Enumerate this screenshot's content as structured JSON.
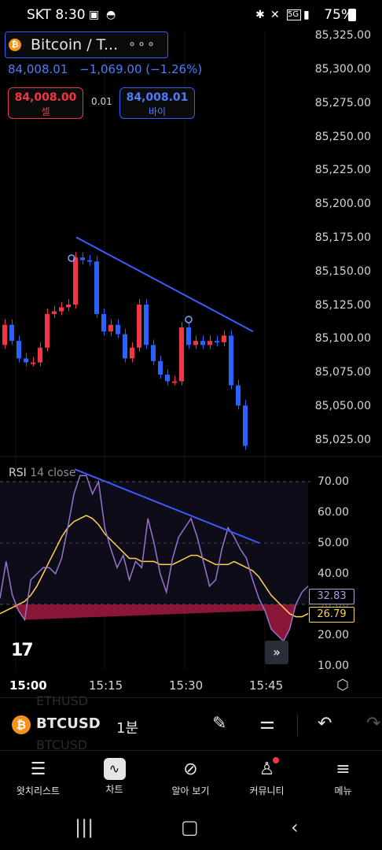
{
  "status_bar": {
    "carrier_time": "SKT 8:30",
    "battery": "75%",
    "icons": [
      "image-icon",
      "incognito-icon",
      "bluetooth-icon",
      "mute-icon",
      "5g-icon",
      "signal-icon",
      "battery-icon"
    ]
  },
  "symbol": {
    "title": "Bitcoin / T...",
    "more_label": "∘∘∘",
    "last_price": "84,008.01",
    "change": "−1,069.00 (−1.26%)"
  },
  "trade": {
    "sell_price": "84,008.00",
    "sell_label": "셀",
    "spread": "0.01",
    "buy_price": "84,008.01",
    "buy_label": "바이"
  },
  "price_axis": [
    "85,325.00",
    "85,300.00",
    "85,275.00",
    "85,250.00",
    "85,225.00",
    "85,200.00",
    "85,175.00",
    "85,150.00",
    "85,125.00",
    "85,100.00",
    "85,075.00",
    "85,050.00",
    "85,025.00"
  ],
  "rsi": {
    "label": "RSI",
    "params": "14 close",
    "axis": [
      "70.00",
      "60.00",
      "50.00",
      "40.00",
      "30.00",
      "20.00",
      "10.00"
    ],
    "value_badge": "32.83",
    "ma_badge": "26.79"
  },
  "time_axis": [
    "15:00",
    "15:15",
    "15:30",
    "15:45"
  ],
  "colors": {
    "up": "#f23645",
    "down": "#2962ff",
    "trendline": "#3d5afe",
    "rsi_line": "#9575cd",
    "rsi_ma": "#ffd24d"
  },
  "chart_data": [
    {
      "type": "candlestick",
      "ylabel": "",
      "ylim": [
        85012,
        85337
      ],
      "candles_open_close": [
        [
          85095,
          85110
        ],
        [
          85110,
          85098
        ],
        [
          85098,
          85085
        ],
        [
          85085,
          85082
        ],
        [
          85082,
          85082
        ],
        [
          85082,
          85093
        ],
        [
          85093,
          85118
        ],
        [
          85118,
          85120
        ],
        [
          85120,
          85123
        ],
        [
          85123,
          85125
        ],
        [
          85125,
          85160
        ],
        [
          85160,
          85158
        ],
        [
          85158,
          85157
        ],
        [
          85157,
          85118
        ],
        [
          85118,
          85105
        ],
        [
          85105,
          85110
        ],
        [
          85110,
          85103
        ],
        [
          85103,
          85085
        ],
        [
          85085,
          85093
        ],
        [
          85093,
          85125
        ],
        [
          85125,
          85095
        ],
        [
          85095,
          85083
        ],
        [
          85083,
          85073
        ],
        [
          85073,
          85068
        ],
        [
          85068,
          85068
        ],
        [
          85068,
          85108
        ],
        [
          85108,
          85095
        ],
        [
          85095,
          85098
        ],
        [
          85098,
          85095
        ],
        [
          85095,
          85098
        ],
        [
          85098,
          85097
        ],
        [
          85097,
          85102
        ],
        [
          85102,
          85065
        ],
        [
          85065,
          85050
        ],
        [
          85050,
          85020
        ]
      ],
      "trendline": {
        "start": [
          85,
          85175
        ],
        "end": [
          322,
          85105
        ]
      }
    },
    {
      "type": "line",
      "title": "RSI 14 close",
      "ylim": [
        10,
        70
      ],
      "series": [
        {
          "values": [
            32,
            44,
            33,
            28,
            25,
            38,
            40,
            42,
            42,
            40,
            45,
            55,
            66,
            72,
            72,
            66,
            70,
            55,
            48,
            42,
            46,
            38,
            44,
            42,
            58,
            50,
            40,
            34,
            45,
            52,
            55,
            58,
            52,
            44,
            36,
            38,
            48,
            55,
            52,
            48,
            45,
            38,
            32,
            28,
            22,
            20,
            18,
            22,
            30,
            34,
            36
          ]
        },
        {
          "values": [
            27,
            28,
            29,
            30,
            31,
            33,
            36,
            40,
            44,
            48,
            52,
            55,
            57,
            58,
            59,
            58,
            56,
            53,
            51,
            49,
            47,
            45,
            45,
            44,
            44,
            44,
            43,
            43,
            43,
            44,
            45,
            46,
            46,
            45,
            44,
            43,
            43,
            43,
            44,
            43,
            42,
            41,
            39,
            36,
            33,
            31,
            29,
            27,
            26,
            26,
            27
          ]
        }
      ],
      "trendline": {
        "start": [
          95,
          72
        ],
        "end": [
          330,
          50
        ]
      }
    }
  ],
  "toolbar": {
    "ticker": "BTCUSD",
    "ghost_above": "ETHUSD",
    "ghost_below": "BTCUSD",
    "interval": "1분"
  },
  "nav": [
    {
      "label": "왓치리스트",
      "icon": "watchlist-icon"
    },
    {
      "label": "차트",
      "icon": "chart-icon"
    },
    {
      "label": "알아 보기",
      "icon": "compass-icon"
    },
    {
      "label": "커뮤니티",
      "icon": "community-icon"
    },
    {
      "label": "메뉴",
      "icon": "menu-icon"
    }
  ]
}
